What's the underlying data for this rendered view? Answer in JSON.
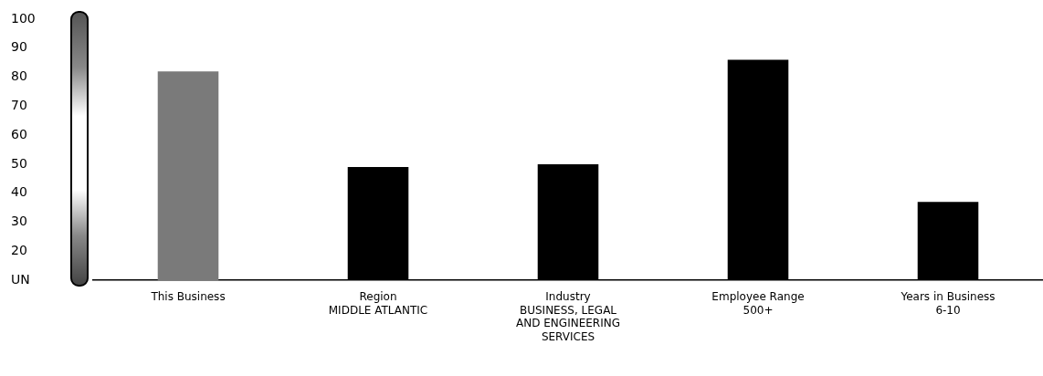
{
  "chart_data": {
    "type": "bar",
    "categories": [
      "This Business",
      "Region\nMIDDLE ATLANTIC",
      "Industry\nBUSINESS, LEGAL\nAND ENGINEERING\nSERVICES",
      "Employee Range\n500+",
      "Years in Business\n6-10"
    ],
    "values": [
      82,
      49,
      50,
      86,
      37
    ],
    "colors": [
      "#7a7a7a",
      "#000000",
      "#000000",
      "#000000",
      "#000000"
    ],
    "ylim": [
      10,
      100
    ],
    "yticks": [
      {
        "value": 10,
        "label": "UN"
      },
      20,
      30,
      40,
      50,
      60,
      70,
      80,
      90,
      100
    ],
    "grid": false,
    "legend": false
  }
}
